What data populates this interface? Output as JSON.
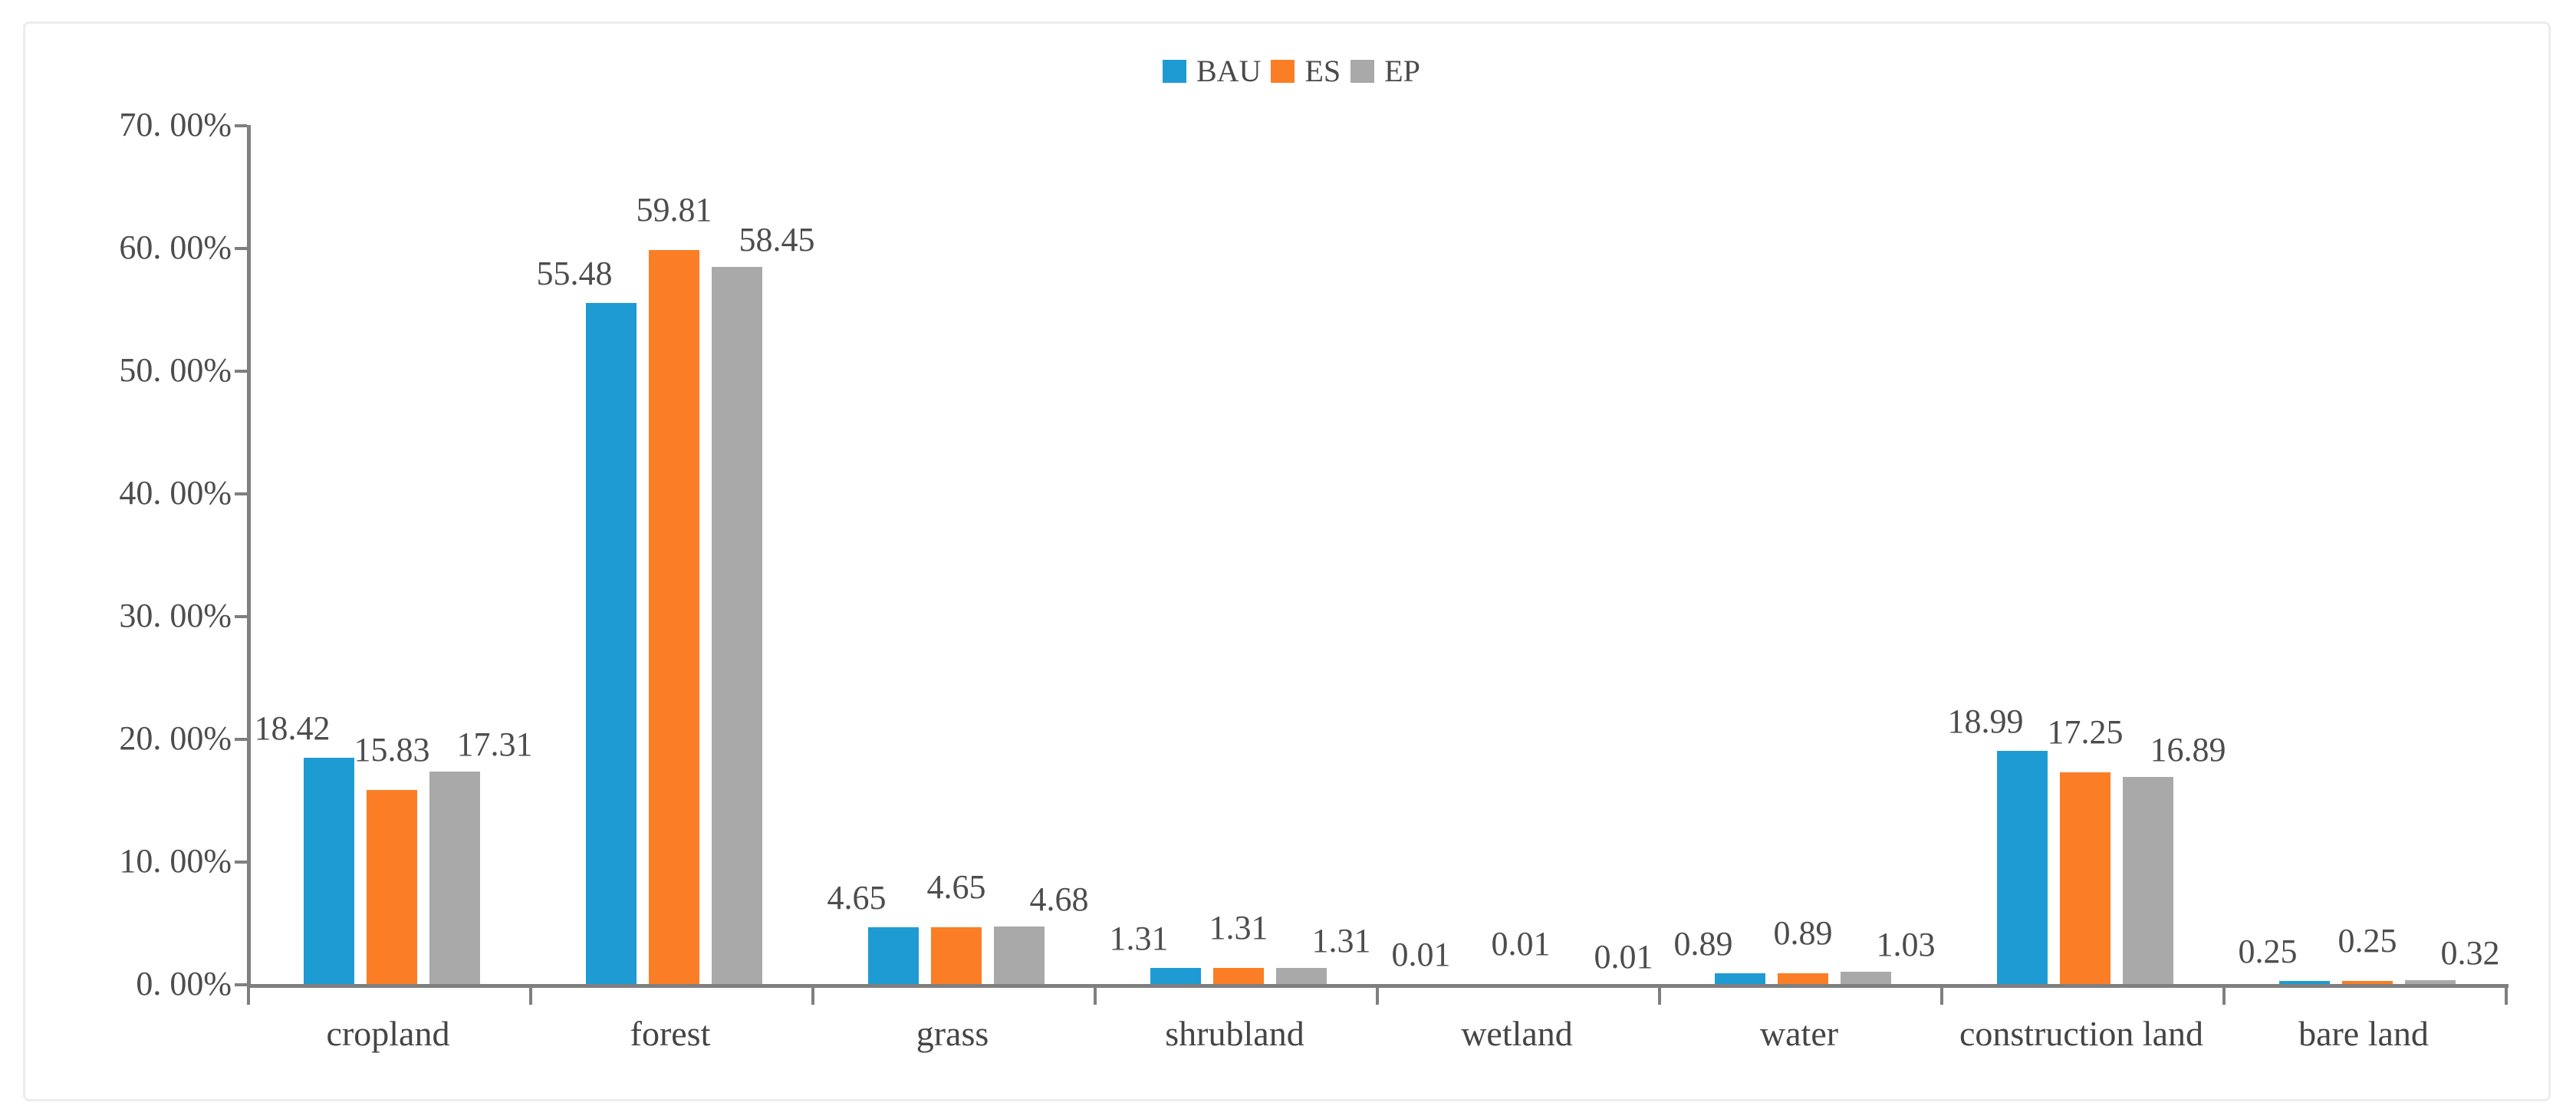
{
  "chart_data": {
    "type": "bar",
    "title": "",
    "xlabel": "",
    "ylabel": "",
    "categories": [
      "cropland",
      "forest",
      "grass",
      "shrubland",
      "wetland",
      "water",
      "construction land",
      "bare land"
    ],
    "series": [
      {
        "name": "BAU",
        "color": "#1f9bd4",
        "values": [
          18.42,
          55.48,
          4.65,
          1.31,
          0.01,
          0.89,
          18.99,
          0.25
        ]
      },
      {
        "name": "ES",
        "color": "#fb7e26",
        "values": [
          15.83,
          59.81,
          4.65,
          1.31,
          0.01,
          0.89,
          17.25,
          0.25
        ]
      },
      {
        "name": "EP",
        "color": "#a9a9a9",
        "values": [
          17.31,
          58.45,
          4.68,
          1.31,
          0.01,
          1.03,
          16.89,
          0.32
        ]
      }
    ],
    "ylim": [
      0,
      70
    ],
    "y_tick_step": 10,
    "y_tick_labels": [
      "0. 00%",
      "10. 00%",
      "20. 00%",
      "30. 00%",
      "40. 00%",
      "50. 00%",
      "60. 00%",
      "70. 00%"
    ],
    "value_labels_shown": true,
    "grid": "off",
    "legend_position": "top-center",
    "colors": {
      "axis": "#7f7f7f",
      "tick_text": "#4d4d4d",
      "category_text": "#454545",
      "legend_text": "#4a4a4a",
      "card_border": "#ececec",
      "background": "#ffffff"
    }
  }
}
